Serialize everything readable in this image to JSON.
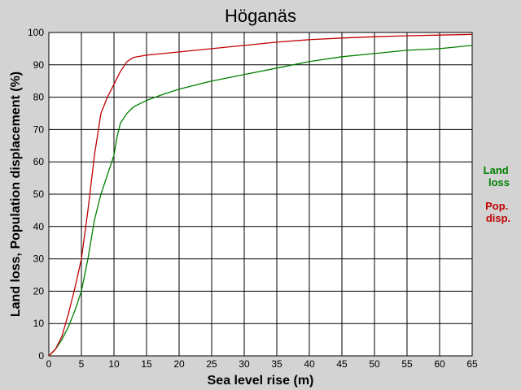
{
  "chart_data": {
    "type": "line",
    "title": "Höganäs",
    "xlabel": "Sea level rise (m)",
    "ylabel": "Land loss, Population displacement (%)",
    "xlim": [
      0,
      65
    ],
    "ylim": [
      0,
      100
    ],
    "xticks": [
      0,
      5,
      10,
      15,
      20,
      25,
      30,
      35,
      40,
      45,
      50,
      55,
      60,
      65
    ],
    "yticks": [
      0,
      10,
      20,
      30,
      40,
      50,
      60,
      70,
      80,
      90,
      100
    ],
    "grid": true,
    "legend_position": "right",
    "series": [
      {
        "name": "Land loss",
        "color": "#008000",
        "x": [
          0,
          1,
          2,
          3,
          4,
          5,
          6,
          7,
          8,
          9,
          10,
          10.5,
          11,
          12,
          13,
          15,
          17,
          20,
          25,
          30,
          35,
          40,
          45,
          50,
          55,
          60,
          65
        ],
        "y": [
          0,
          2,
          5,
          9,
          14,
          20,
          30,
          42,
          50,
          56,
          62,
          68,
          72,
          75,
          77,
          79,
          80.5,
          82.5,
          85,
          87,
          89,
          91,
          92.5,
          93.5,
          94.5,
          95,
          96
        ]
      },
      {
        "name": "Pop. disp.",
        "color": "#c00000",
        "x": [
          0,
          1,
          2,
          3,
          4,
          5,
          6,
          7,
          8,
          9,
          10,
          11,
          12,
          13,
          15,
          20,
          25,
          30,
          35,
          40,
          45,
          50,
          55,
          60,
          65
        ],
        "y": [
          0,
          2,
          6,
          13,
          21,
          30,
          45,
          62,
          75,
          80,
          84,
          88,
          91,
          92.3,
          93,
          94,
          95,
          96,
          97,
          97.8,
          98.3,
          98.7,
          99,
          99.2,
          99.4
        ]
      }
    ]
  },
  "legend": {
    "land_loss": [
      "Land",
      "loss"
    ],
    "pop_disp": [
      "Pop.",
      "disp."
    ]
  }
}
